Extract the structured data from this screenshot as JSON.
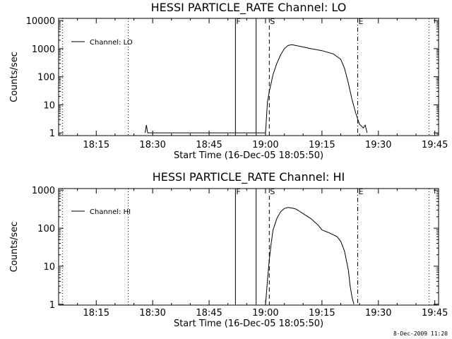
{
  "chart_data": [
    {
      "type": "line",
      "title": "HESSI PARTICLE_RATE Channel: LO",
      "xlabel": "Start Time (16-Dec-05 18:05:50)",
      "ylabel": "Counts/sec",
      "y_scale": "log",
      "xlim": [
        "18:05",
        "19:46"
      ],
      "ylim": [
        0.8,
        12000
      ],
      "x_ticks": [
        "18:15",
        "18:30",
        "18:45",
        "19:00",
        "19:15",
        "19:30",
        "19:45"
      ],
      "y_ticks": [
        "1",
        "10",
        "100",
        "1000",
        "10000"
      ],
      "legend": "top-left",
      "series": [
        {
          "name": "Channel: LO",
          "x": [
            "18:28:00",
            "18:28:20",
            "18:28:40",
            "19:00:00",
            "19:00:30",
            "19:01:00",
            "19:01:30",
            "19:02:00",
            "19:03:00",
            "19:04:00",
            "19:05:00",
            "19:06:00",
            "19:07:00",
            "19:08:00",
            "19:10:00",
            "19:12:00",
            "19:15:00",
            "19:18:00",
            "19:20:00",
            "19:21:00",
            "19:22:00",
            "19:23:00",
            "19:24:00",
            "19:25:00",
            "19:26:00",
            "19:26:30",
            "19:27:00"
          ],
          "y": [
            1,
            1.9,
            1,
            1,
            12,
            30,
            60,
            120,
            300,
            600,
            1000,
            1300,
            1380,
            1300,
            1150,
            1000,
            850,
            650,
            420,
            200,
            60,
            15,
            5,
            2,
            1.5,
            1.9,
            1
          ]
        }
      ],
      "markers": [
        {
          "label": "",
          "time": "18:06",
          "style": "dotted"
        },
        {
          "label": "",
          "time": "18:23:30",
          "style": "dotted"
        },
        {
          "label": "F",
          "time": "18:52",
          "style": "solid"
        },
        {
          "label": "",
          "time": "18:57:30",
          "style": "solid"
        },
        {
          "label": "S",
          "time": "19:01:00",
          "style": "dashed"
        },
        {
          "label": "E",
          "time": "19:24:30",
          "style": "dashdot"
        },
        {
          "label": "",
          "time": "19:43:30",
          "style": "dotted"
        }
      ]
    },
    {
      "type": "line",
      "title": "HESSI PARTICLE_RATE Channel: HI",
      "xlabel": "Start Time (16-Dec-05 18:05:50)",
      "ylabel": "Counts/sec",
      "y_scale": "log",
      "xlim": [
        "18:05",
        "19:46"
      ],
      "ylim": [
        0.95,
        1100
      ],
      "x_ticks": [
        "18:15",
        "18:30",
        "18:45",
        "19:00",
        "19:15",
        "19:30",
        "19:45"
      ],
      "y_ticks": [
        "1",
        "10",
        "100",
        "1000"
      ],
      "legend": "top-left",
      "series": [
        {
          "name": "Channel: HI",
          "x": [
            "19:00:00",
            "19:00:30",
            "19:01:00",
            "19:01:30",
            "19:02:00",
            "19:03:00",
            "19:04:00",
            "19:05:00",
            "19:06:00",
            "19:07:00",
            "19:08:00",
            "19:09:00",
            "19:10:00",
            "19:12:00",
            "19:14:00",
            "19:15:00",
            "19:17:00",
            "19:19:00",
            "19:20:00",
            "19:21:00",
            "19:22:00",
            "19:22:30",
            "19:23:00",
            "19:23:30"
          ],
          "y": [
            1,
            4,
            15,
            40,
            90,
            180,
            270,
            330,
            350,
            340,
            320,
            280,
            240,
            180,
            120,
            90,
            75,
            60,
            45,
            25,
            8,
            3,
            1.5,
            1
          ]
        }
      ],
      "markers": [
        {
          "label": "",
          "time": "18:06",
          "style": "dotted"
        },
        {
          "label": "",
          "time": "18:23:30",
          "style": "dotted"
        },
        {
          "label": "F",
          "time": "18:52",
          "style": "solid"
        },
        {
          "label": "",
          "time": "18:57:30",
          "style": "solid"
        },
        {
          "label": "S",
          "time": "19:01:00",
          "style": "dashed"
        },
        {
          "label": "E",
          "time": "19:24:30",
          "style": "dashdot"
        },
        {
          "label": "",
          "time": "19:43:30",
          "style": "dotted"
        }
      ]
    }
  ],
  "footer": {
    "stamp": "8-Dec-2009 11:20"
  }
}
